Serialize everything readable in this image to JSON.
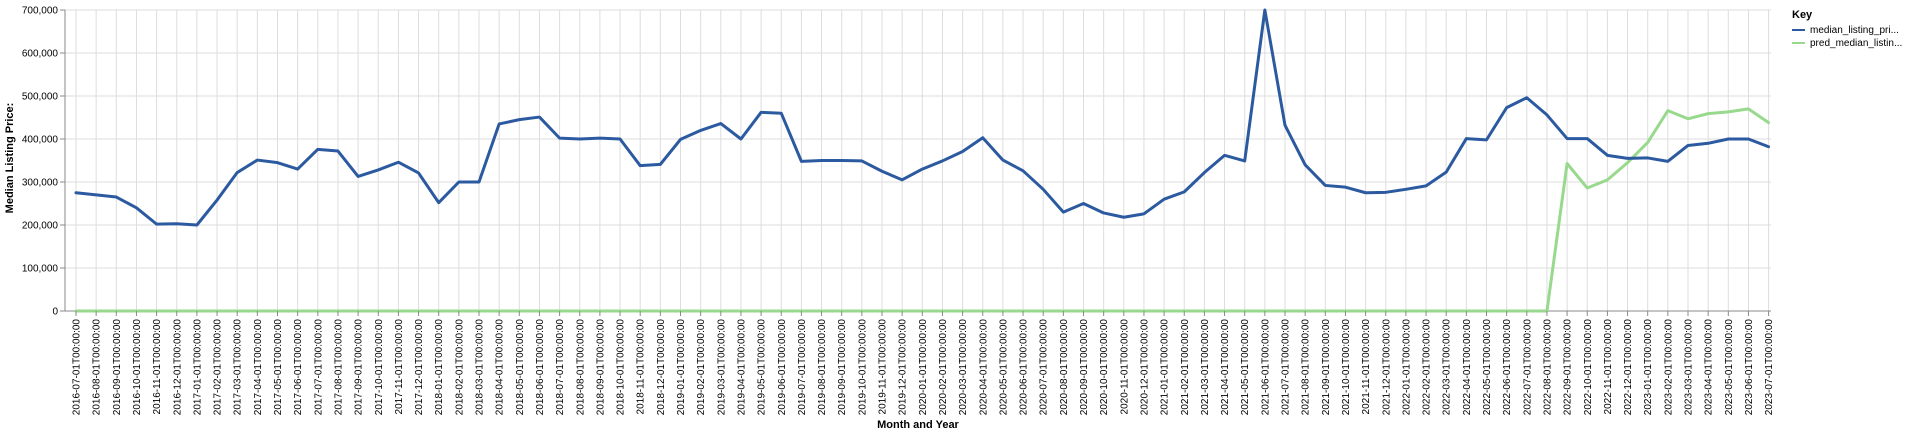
{
  "chart_data": {
    "type": "line",
    "xlabel": "Month and Year",
    "ylabel": "Median Listing Price:",
    "ylim": [
      0,
      700000
    ],
    "yticks": [
      0,
      100000,
      200000,
      300000,
      400000,
      500000,
      600000,
      700000
    ],
    "ytick_labels": [
      "0",
      "100,000",
      "200,000",
      "300,000",
      "400,000",
      "500,000",
      "600,000",
      "700,000"
    ],
    "grid": true,
    "legend": {
      "title": "Key",
      "position": "top-right"
    },
    "x": [
      "2016-07-01T00:00:00",
      "2016-08-01T00:00:00",
      "2016-09-01T00:00:00",
      "2016-10-01T00:00:00",
      "2016-11-01T00:00:00",
      "2016-12-01T00:00:00",
      "2017-01-01T00:00:00",
      "2017-02-01T00:00:00",
      "2017-03-01T00:00:00",
      "2017-04-01T00:00:00",
      "2017-05-01T00:00:00",
      "2017-06-01T00:00:00",
      "2017-07-01T00:00:00",
      "2017-08-01T00:00:00",
      "2017-09-01T00:00:00",
      "2017-10-01T00:00:00",
      "2017-11-01T00:00:00",
      "2017-12-01T00:00:00",
      "2018-01-01T00:00:00",
      "2018-02-01T00:00:00",
      "2018-03-01T00:00:00",
      "2018-04-01T00:00:00",
      "2018-05-01T00:00:00",
      "2018-06-01T00:00:00",
      "2018-07-01T00:00:00",
      "2018-08-01T00:00:00",
      "2018-09-01T00:00:00",
      "2018-10-01T00:00:00",
      "2018-11-01T00:00:00",
      "2018-12-01T00:00:00",
      "2019-01-01T00:00:00",
      "2019-02-01T00:00:00",
      "2019-03-01T00:00:00",
      "2019-04-01T00:00:00",
      "2019-05-01T00:00:00",
      "2019-06-01T00:00:00",
      "2019-07-01T00:00:00",
      "2019-08-01T00:00:00",
      "2019-09-01T00:00:00",
      "2019-10-01T00:00:00",
      "2019-11-01T00:00:00",
      "2019-12-01T00:00:00",
      "2020-01-01T00:00:00",
      "2020-02-01T00:00:00",
      "2020-03-01T00:00:00",
      "2020-04-01T00:00:00",
      "2020-05-01T00:00:00",
      "2020-06-01T00:00:00",
      "2020-07-01T00:00:00",
      "2020-08-01T00:00:00",
      "2020-09-01T00:00:00",
      "2020-10-01T00:00:00",
      "2020-11-01T00:00:00",
      "2020-12-01T00:00:00",
      "2021-01-01T00:00:00",
      "2021-02-01T00:00:00",
      "2021-03-01T00:00:00",
      "2021-04-01T00:00:00",
      "2021-05-01T00:00:00",
      "2021-06-01T00:00:00",
      "2021-07-01T00:00:00",
      "2021-08-01T00:00:00",
      "2021-09-01T00:00:00",
      "2021-10-01T00:00:00",
      "2021-11-01T00:00:00",
      "2021-12-01T00:00:00",
      "2022-01-01T00:00:00",
      "2022-02-01T00:00:00",
      "2022-03-01T00:00:00",
      "2022-04-01T00:00:00",
      "2022-05-01T00:00:00",
      "2022-06-01T00:00:00",
      "2022-07-01T00:00:00",
      "2022-08-01T00:00:00",
      "2022-09-01T00:00:00",
      "2022-10-01T00:00:00",
      "2022-11-01T00:00:00",
      "2022-12-01T00:00:00",
      "2023-01-01T00:00:00",
      "2023-02-01T00:00:00",
      "2023-03-01T00:00:00",
      "2023-04-01T00:00:00",
      "2023-05-01T00:00:00",
      "2023-06-01T00:00:00",
      "2023-07-01T00:00:00"
    ],
    "series": [
      {
        "name": "median_listing_pri...",
        "color": "#2c5aa0",
        "values": [
          275000,
          270000,
          265000,
          240000,
          202000,
          203000,
          200000,
          258000,
          322000,
          351000,
          345000,
          330000,
          376000,
          372000,
          313000,
          328000,
          346000,
          321000,
          252000,
          300000,
          300000,
          435000,
          445000,
          451000,
          402000,
          400000,
          402000,
          400000,
          338000,
          341000,
          399000,
          420000,
          436000,
          400000,
          462000,
          460000,
          348000,
          350000,
          350000,
          349000,
          325000,
          305000,
          330000,
          349000,
          371000,
          403000,
          351000,
          326000,
          283000,
          230000,
          250000,
          228000,
          218000,
          226000,
          260000,
          277000,
          322000,
          362000,
          349000,
          700000,
          432000,
          340000,
          292000,
          288000,
          275000,
          276000,
          283000,
          291000,
          323000,
          401000,
          398000,
          473000,
          496000,
          456000,
          401000,
          401000,
          362000,
          355000,
          356000,
          348000,
          385000,
          390000,
          400000,
          400000,
          382000
        ]
      },
      {
        "name": "pred_median_listin...",
        "color": "#98d98e",
        "values": [
          0,
          0,
          0,
          0,
          0,
          0,
          0,
          0,
          0,
          0,
          0,
          0,
          0,
          0,
          0,
          0,
          0,
          0,
          0,
          0,
          0,
          0,
          0,
          0,
          0,
          0,
          0,
          0,
          0,
          0,
          0,
          0,
          0,
          0,
          0,
          0,
          0,
          0,
          0,
          0,
          0,
          0,
          0,
          0,
          0,
          0,
          0,
          0,
          0,
          0,
          0,
          0,
          0,
          0,
          0,
          0,
          0,
          0,
          0,
          0,
          0,
          0,
          0,
          0,
          0,
          0,
          0,
          0,
          0,
          0,
          0,
          0,
          0,
          0,
          343000,
          286000,
          305000,
          345000,
          392000,
          466000,
          447000,
          459000,
          463000,
          470000,
          438000
        ]
      }
    ]
  }
}
